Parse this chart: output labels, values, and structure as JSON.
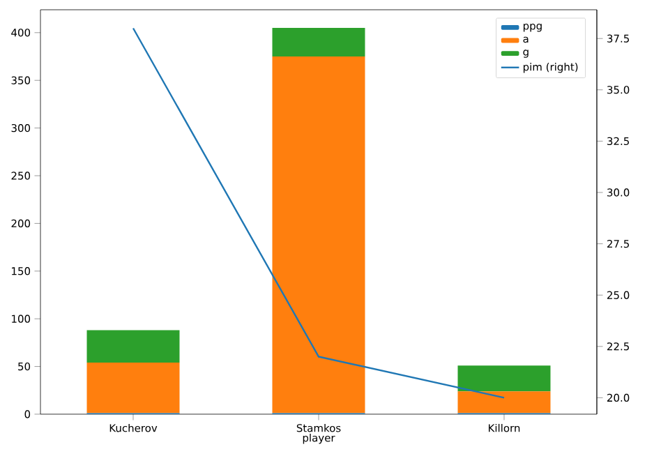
{
  "chart_data": {
    "type": "bar",
    "stacked": true,
    "xlabel": "player",
    "legend": "top right",
    "categories": [
      "Kucherov",
      "Stamkos",
      "Killorn"
    ],
    "series": [
      {
        "name": "ppg",
        "color": "#1f77b4",
        "values": [
          1,
          1,
          1
        ]
      },
      {
        "name": "a",
        "color": "#ff7f0e",
        "values": [
          53,
          374,
          23
        ]
      },
      {
        "name": "g",
        "color": "#2ca02c",
        "values": [
          34,
          30,
          27
        ]
      },
      {
        "name": "pim (right)",
        "type": "line",
        "axis": "y2",
        "color": "#1f77b4",
        "values": [
          38,
          22,
          20
        ]
      }
    ],
    "ylim": [
      0,
      424
    ],
    "yticks": [
      0,
      50,
      100,
      150,
      200,
      250,
      300,
      350,
      400
    ],
    "y2lim": [
      19.2,
      38.9
    ],
    "y2ticks": [
      {
        "value": 20,
        "label": "20.0"
      },
      {
        "value": 22.5,
        "label": "22.5"
      },
      {
        "value": 25,
        "label": "25.0"
      },
      {
        "value": 27.5,
        "label": "27.5"
      },
      {
        "value": 30,
        "label": "30.0"
      },
      {
        "value": 32.5,
        "label": "32.5"
      },
      {
        "value": 35,
        "label": "35.0"
      },
      {
        "value": 37.5,
        "label": "37.5"
      }
    ]
  }
}
